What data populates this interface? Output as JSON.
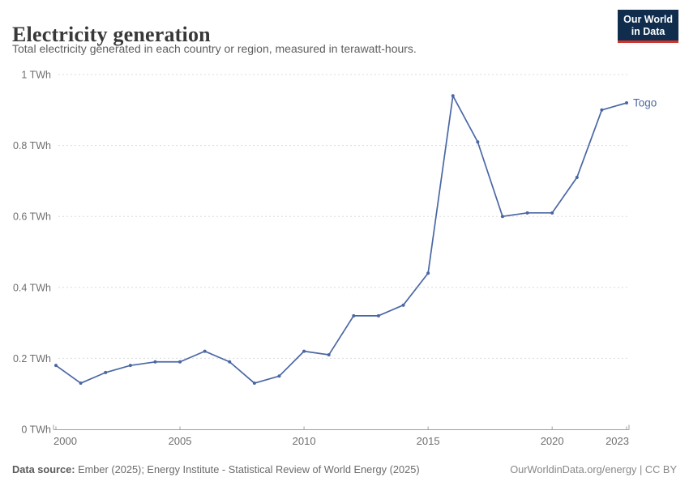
{
  "header": {
    "title": "Electricity generation",
    "subtitle": "Total electricity generated in each country or region, measured in terawatt-hours."
  },
  "logo": {
    "line1": "Our World",
    "line2": "in Data",
    "bg_color": "#102d4e",
    "accent_color": "#d0342c"
  },
  "chart_data": {
    "type": "line",
    "title": "Electricity generation",
    "unit": "TWh",
    "xlim": [
      2000,
      2023
    ],
    "ylim": [
      0,
      1
    ],
    "grid": "horizontal-dashed",
    "legend_position": "end-of-line-label",
    "x": [
      2000,
      2001,
      2002,
      2003,
      2004,
      2005,
      2006,
      2007,
      2008,
      2009,
      2010,
      2011,
      2012,
      2013,
      2014,
      2015,
      2016,
      2017,
      2018,
      2019,
      2020,
      2021,
      2022,
      2023
    ],
    "series": [
      {
        "name": "Togo",
        "color": "#4a67a4",
        "values": [
          0.18,
          0.13,
          0.16,
          0.18,
          0.19,
          0.19,
          0.22,
          0.19,
          0.13,
          0.15,
          0.22,
          0.21,
          0.32,
          0.32,
          0.35,
          0.44,
          0.94,
          0.81,
          0.6,
          0.61,
          0.61,
          0.71,
          0.9,
          0.92
        ]
      }
    ],
    "x_ticks": [
      2000,
      2005,
      2010,
      2015,
      2020,
      2023
    ],
    "y_ticks": [
      {
        "value": 0,
        "label": "0 TWh"
      },
      {
        "value": 0.2,
        "label": "0.2 TWh"
      },
      {
        "value": 0.4,
        "label": "0.4 TWh"
      },
      {
        "value": 0.6,
        "label": "0.6 TWh"
      },
      {
        "value": 0.8,
        "label": "0.8 TWh"
      },
      {
        "value": 1,
        "label": "1 TWh"
      }
    ],
    "colors": {
      "gridline": "#dcdcdc",
      "axis": "#a0a0a0",
      "tick_label": "#6e6e6e"
    }
  },
  "footer": {
    "source_label": "Data source:",
    "source_text": " Ember (2025); Energy Institute - Statistical Review of World Energy (2025)",
    "license_text": "OurWorldinData.org/energy | CC BY"
  }
}
